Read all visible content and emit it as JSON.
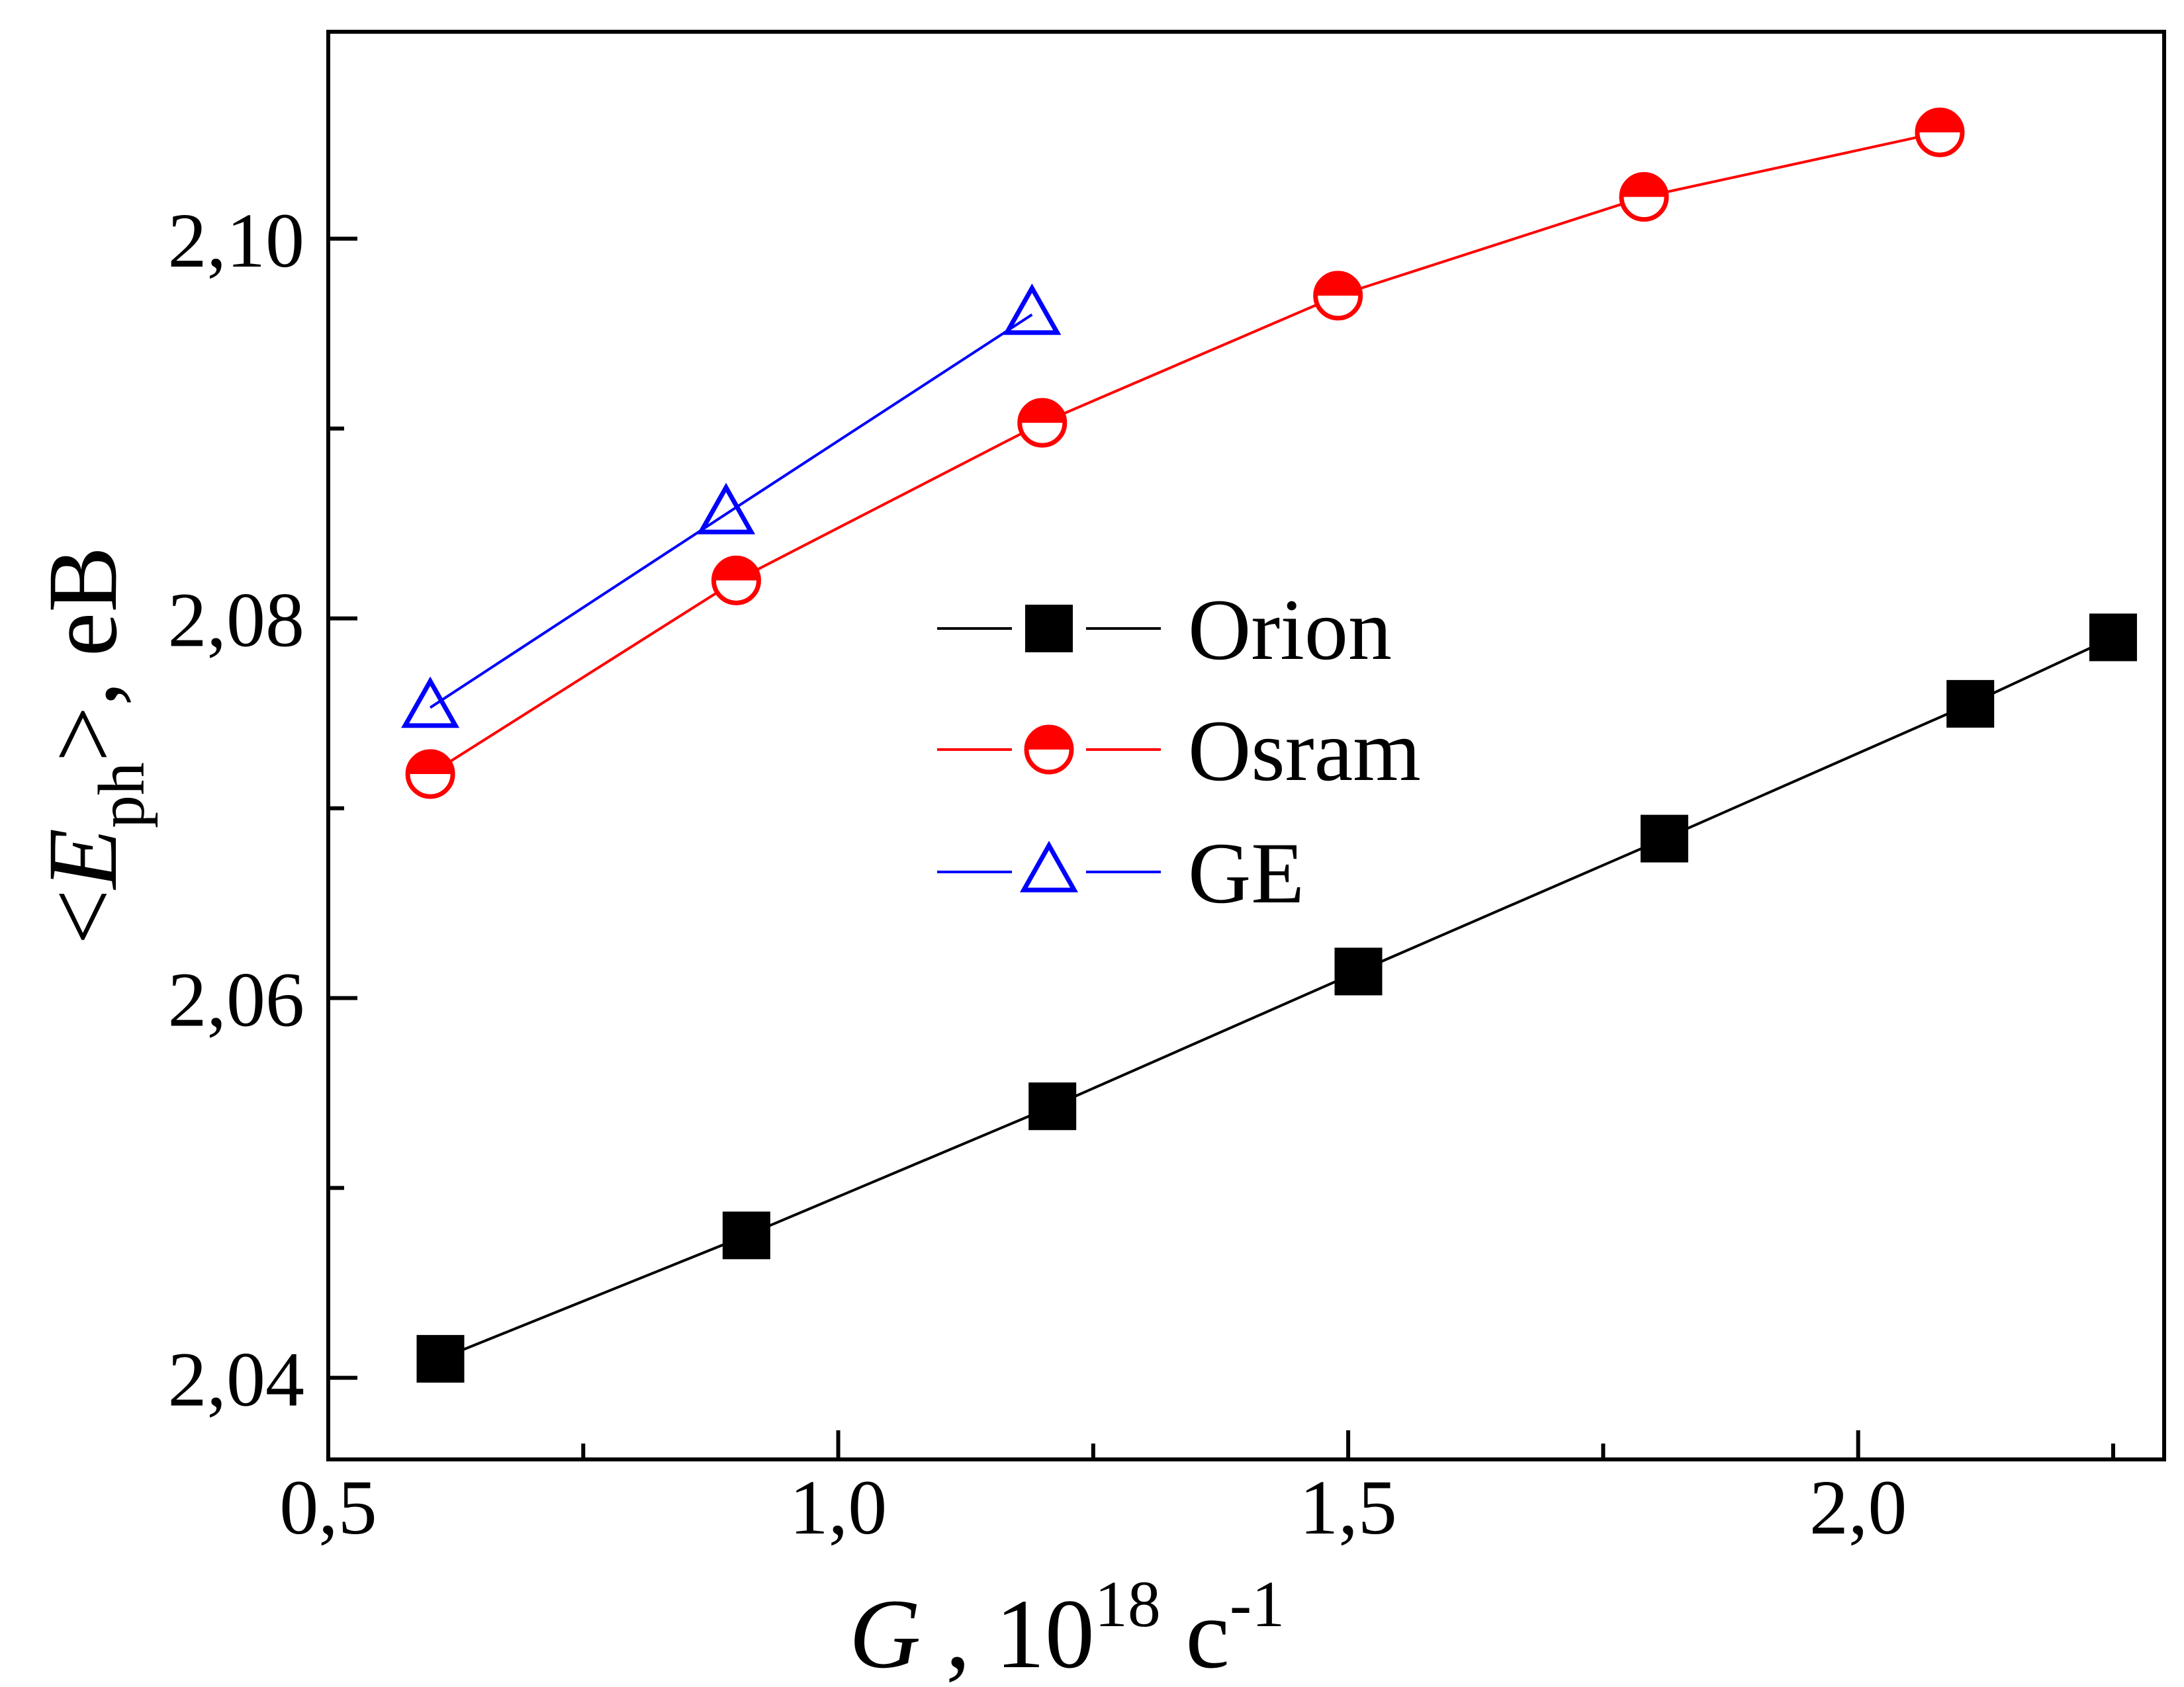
{
  "chart_data": {
    "type": "line",
    "xlabel": {
      "var": "G",
      "sep": " , 10",
      "exp": "18",
      "unit": " c",
      "unit_exp": "-1"
    },
    "ylabel": {
      "open": "<",
      "var": "E",
      "sub": "ph",
      "close": ">",
      "unit": ", eB"
    },
    "xlim": [
      0.5,
      2.3
    ],
    "ylim": [
      2.0357,
      2.1109
    ],
    "x_major_ticks": [
      0.5,
      1.0,
      1.5,
      2.0
    ],
    "x_tick_labels": [
      "0,5",
      "1,0",
      "1,5",
      "2,0"
    ],
    "x_minor_ticks": [
      0.75,
      1.25,
      1.75,
      2.25
    ],
    "y_major_ticks": [
      2.04,
      2.06,
      2.08,
      2.1
    ],
    "y_tick_labels": [
      "2,04",
      "2,06",
      "2,08",
      "2,10"
    ],
    "y_minor_ticks": [
      2.05,
      2.07,
      2.09
    ],
    "legend_position": "center-right",
    "series": [
      {
        "name": "Orion",
        "color": "#000000",
        "marker": "filled-square",
        "x": [
          0.61,
          0.91,
          1.21,
          1.51,
          1.81,
          2.11,
          2.25
        ],
        "y": [
          2.041,
          2.0475,
          2.0543,
          2.0614,
          2.0684,
          2.0755,
          2.079
        ]
      },
      {
        "name": "Osram",
        "color": "#ff0000",
        "marker": "half-filled-circle",
        "x": [
          0.6,
          0.9,
          1.2,
          1.49,
          1.79,
          2.08
        ],
        "y": [
          2.0718,
          2.082,
          2.0903,
          2.097,
          2.1022,
          2.1056
        ]
      },
      {
        "name": "GE",
        "color": "#0000ff",
        "marker": "open-triangle",
        "x": [
          0.6,
          0.89,
          1.19
        ],
        "y": [
          2.0753,
          2.0855,
          2.096
        ]
      }
    ]
  }
}
